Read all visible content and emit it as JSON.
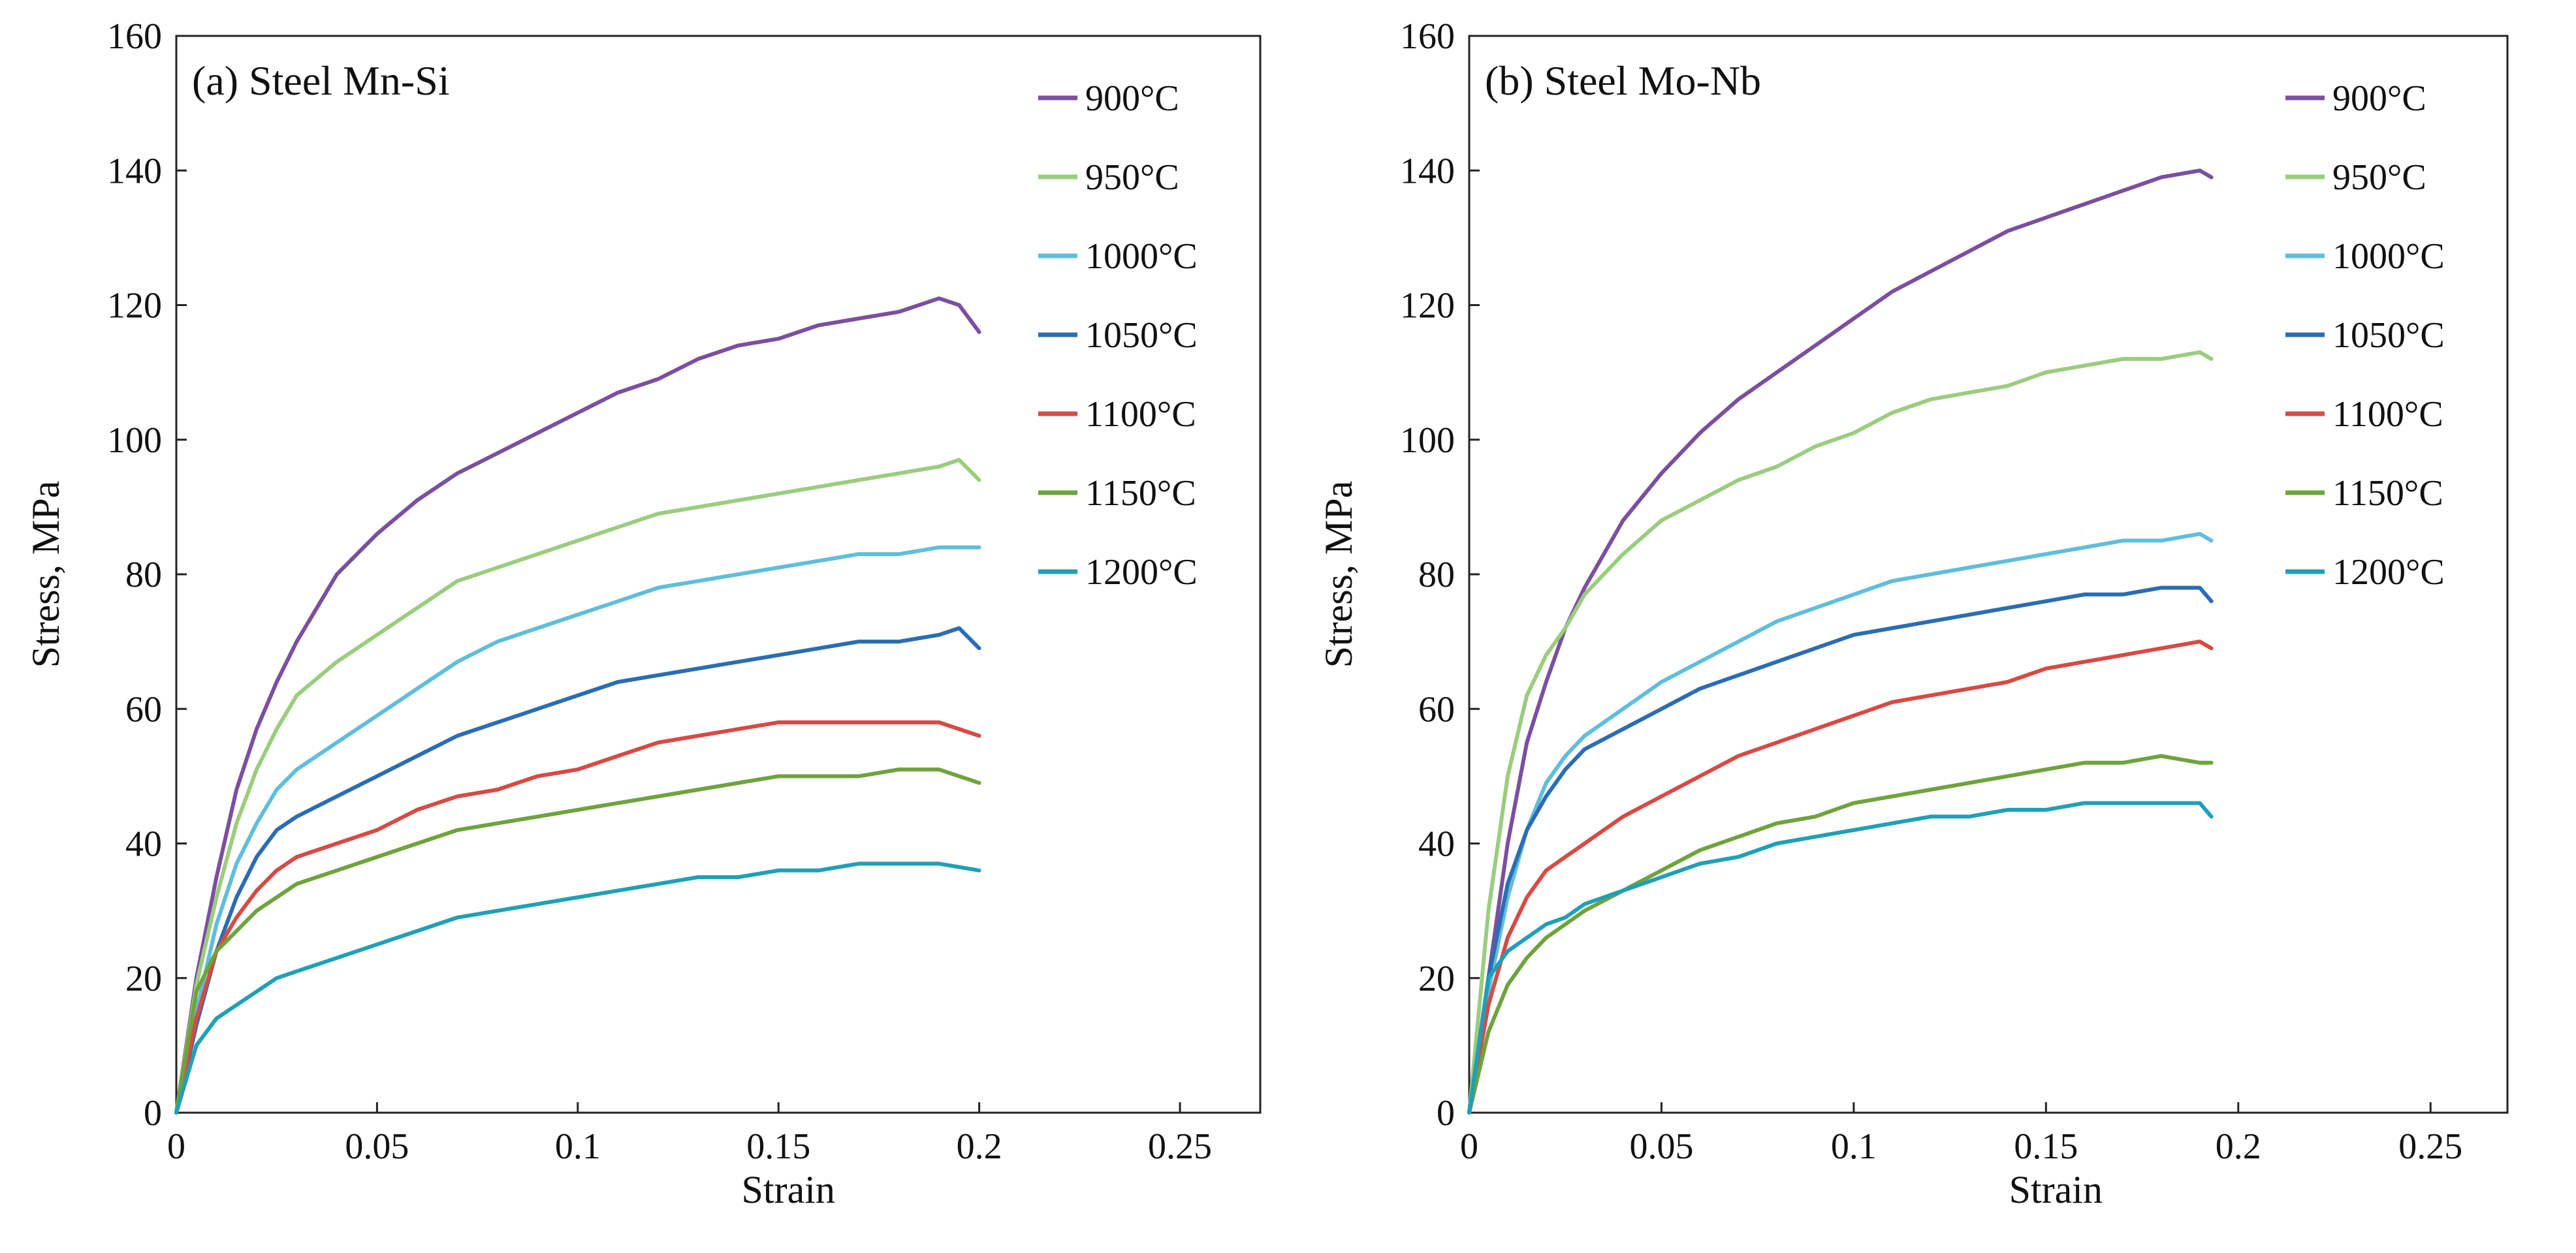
{
  "chart_data": [
    {
      "type": "line",
      "title": "(a) Steel Mn-Si",
      "xlabel": "Strain",
      "ylabel": "Stress, MPa",
      "xlim": [
        0,
        0.27
      ],
      "ylim": [
        0,
        160
      ],
      "xticks": [
        0,
        0.05,
        0.1,
        0.15,
        0.2,
        0.25
      ],
      "xtick_labels": [
        "0",
        "0.05",
        "0.1",
        "0.15",
        "0.2",
        "0.25"
      ],
      "yticks": [
        0,
        20,
        40,
        60,
        80,
        100,
        120,
        140,
        160
      ],
      "ytick_labels": [
        "0",
        "20",
        "40",
        "60",
        "80",
        "100",
        "120",
        "140",
        "160"
      ],
      "grid": false,
      "legend_position": "top-right",
      "series": [
        {
          "name": "900°C",
          "color": "#7B4FA0",
          "x": [
            0,
            0.005,
            0.01,
            0.015,
            0.02,
            0.025,
            0.03,
            0.035,
            0.04,
            0.05,
            0.06,
            0.07,
            0.08,
            0.09,
            0.1,
            0.11,
            0.12,
            0.13,
            0.14,
            0.15,
            0.16,
            0.17,
            0.18,
            0.19,
            0.195,
            0.2
          ],
          "y": [
            0,
            20,
            35,
            48,
            57,
            64,
            70,
            75,
            80,
            86,
            91,
            95,
            98,
            101,
            104,
            107,
            109,
            112,
            114,
            115,
            117,
            118,
            119,
            121,
            120,
            116
          ]
        },
        {
          "name": "950°C",
          "color": "#9ACD7E",
          "x": [
            0,
            0.005,
            0.01,
            0.015,
            0.02,
            0.025,
            0.03,
            0.04,
            0.05,
            0.06,
            0.07,
            0.08,
            0.09,
            0.1,
            0.11,
            0.12,
            0.13,
            0.14,
            0.15,
            0.16,
            0.17,
            0.18,
            0.19,
            0.195,
            0.2
          ],
          "y": [
            0,
            19,
            32,
            43,
            51,
            57,
            62,
            67,
            71,
            75,
            79,
            81,
            83,
            85,
            87,
            89,
            90,
            91,
            92,
            93,
            94,
            95,
            96,
            97,
            94
          ]
        },
        {
          "name": "1000°C",
          "color": "#5FBEDC",
          "x": [
            0,
            0.005,
            0.01,
            0.015,
            0.02,
            0.025,
            0.03,
            0.04,
            0.05,
            0.06,
            0.07,
            0.08,
            0.09,
            0.1,
            0.11,
            0.12,
            0.13,
            0.14,
            0.15,
            0.16,
            0.17,
            0.18,
            0.19,
            0.2
          ],
          "y": [
            0,
            15,
            28,
            37,
            43,
            48,
            51,
            55,
            59,
            63,
            67,
            70,
            72,
            74,
            76,
            78,
            79,
            80,
            81,
            82,
            83,
            83,
            84,
            84
          ]
        },
        {
          "name": "1050°C",
          "color": "#2B6DB4",
          "x": [
            0,
            0.005,
            0.01,
            0.015,
            0.02,
            0.025,
            0.03,
            0.04,
            0.05,
            0.06,
            0.07,
            0.08,
            0.09,
            0.1,
            0.11,
            0.12,
            0.13,
            0.14,
            0.15,
            0.16,
            0.17,
            0.18,
            0.19,
            0.195,
            0.2
          ],
          "y": [
            0,
            13,
            24,
            32,
            38,
            42,
            44,
            47,
            50,
            53,
            56,
            58,
            60,
            62,
            64,
            65,
            66,
            67,
            68,
            69,
            70,
            70,
            71,
            72,
            69
          ]
        },
        {
          "name": "1100°C",
          "color": "#D84A43",
          "x": [
            0,
            0.005,
            0.01,
            0.015,
            0.02,
            0.025,
            0.03,
            0.04,
            0.05,
            0.06,
            0.07,
            0.08,
            0.09,
            0.1,
            0.11,
            0.12,
            0.13,
            0.14,
            0.15,
            0.16,
            0.17,
            0.18,
            0.19,
            0.2
          ],
          "y": [
            0,
            14,
            24,
            29,
            33,
            36,
            38,
            40,
            42,
            45,
            47,
            48,
            50,
            51,
            53,
            55,
            56,
            57,
            58,
            58,
            58,
            58,
            58,
            56
          ]
        },
        {
          "name": "1150°C",
          "color": "#6FA33C",
          "x": [
            0,
            0.005,
            0.01,
            0.015,
            0.02,
            0.025,
            0.03,
            0.04,
            0.05,
            0.06,
            0.07,
            0.08,
            0.09,
            0.1,
            0.11,
            0.12,
            0.13,
            0.14,
            0.15,
            0.16,
            0.17,
            0.18,
            0.19,
            0.2
          ],
          "y": [
            0,
            18,
            24,
            27,
            30,
            32,
            34,
            36,
            38,
            40,
            42,
            43,
            44,
            45,
            46,
            47,
            48,
            49,
            50,
            50,
            50,
            51,
            51,
            49
          ]
        },
        {
          "name": "1200°C",
          "color": "#1FA0B8",
          "x": [
            0,
            0.005,
            0.01,
            0.015,
            0.02,
            0.025,
            0.03,
            0.04,
            0.05,
            0.06,
            0.07,
            0.08,
            0.09,
            0.1,
            0.11,
            0.12,
            0.13,
            0.14,
            0.15,
            0.16,
            0.17,
            0.18,
            0.19,
            0.2
          ],
          "y": [
            0,
            10,
            14,
            16,
            18,
            20,
            21,
            23,
            25,
            27,
            29,
            30,
            31,
            32,
            33,
            34,
            35,
            35,
            36,
            36,
            37,
            37,
            37,
            36
          ]
        }
      ]
    },
    {
      "type": "line",
      "title": "(b) Steel Mo-Nb",
      "xlabel": "Strain",
      "ylabel": "Stress, MPa",
      "xlim": [
        0,
        0.27
      ],
      "ylim": [
        0,
        160
      ],
      "xticks": [
        0,
        0.05,
        0.1,
        0.15,
        0.2,
        0.25
      ],
      "xtick_labels": [
        "0",
        "0.05",
        "0.1",
        "0.15",
        "0.2",
        "0.25"
      ],
      "yticks": [
        0,
        20,
        40,
        60,
        80,
        100,
        120,
        140,
        160
      ],
      "ytick_labels": [
        "0",
        "20",
        "40",
        "60",
        "80",
        "100",
        "120",
        "140",
        "160"
      ],
      "grid": false,
      "legend_position": "top-right",
      "series": [
        {
          "name": "900°C",
          "color": "#7B4FA0",
          "x": [
            0,
            0.005,
            0.01,
            0.015,
            0.02,
            0.025,
            0.03,
            0.035,
            0.04,
            0.05,
            0.06,
            0.07,
            0.08,
            0.09,
            0.1,
            0.11,
            0.12,
            0.13,
            0.14,
            0.15,
            0.16,
            0.17,
            0.18,
            0.19,
            0.193
          ],
          "y": [
            0,
            20,
            40,
            55,
            64,
            72,
            78,
            83,
            88,
            95,
            101,
            106,
            110,
            114,
            118,
            122,
            125,
            128,
            131,
            133,
            135,
            137,
            139,
            140,
            139
          ]
        },
        {
          "name": "950°C",
          "color": "#9ACD7E",
          "x": [
            0,
            0.005,
            0.01,
            0.015,
            0.02,
            0.025,
            0.03,
            0.04,
            0.05,
            0.06,
            0.07,
            0.08,
            0.09,
            0.1,
            0.11,
            0.12,
            0.13,
            0.14,
            0.15,
            0.16,
            0.17,
            0.18,
            0.19,
            0.193
          ],
          "y": [
            0,
            30,
            50,
            62,
            68,
            72,
            77,
            83,
            88,
            91,
            94,
            96,
            99,
            101,
            104,
            106,
            107,
            108,
            110,
            111,
            112,
            112,
            113,
            112
          ]
        },
        {
          "name": "1000°C",
          "color": "#5FBEDC",
          "x": [
            0,
            0.005,
            0.01,
            0.015,
            0.02,
            0.025,
            0.03,
            0.04,
            0.05,
            0.06,
            0.07,
            0.08,
            0.09,
            0.1,
            0.11,
            0.12,
            0.13,
            0.14,
            0.15,
            0.16,
            0.17,
            0.18,
            0.19,
            0.193
          ],
          "y": [
            0,
            18,
            32,
            42,
            49,
            53,
            56,
            60,
            64,
            67,
            70,
            73,
            75,
            77,
            79,
            80,
            81,
            82,
            83,
            84,
            85,
            85,
            86,
            85
          ]
        },
        {
          "name": "1050°C",
          "color": "#2B6DB4",
          "x": [
            0,
            0.005,
            0.01,
            0.015,
            0.02,
            0.025,
            0.03,
            0.04,
            0.05,
            0.06,
            0.07,
            0.08,
            0.09,
            0.1,
            0.11,
            0.12,
            0.13,
            0.14,
            0.15,
            0.16,
            0.17,
            0.18,
            0.19,
            0.193
          ],
          "y": [
            0,
            20,
            34,
            42,
            47,
            51,
            54,
            57,
            60,
            63,
            65,
            67,
            69,
            71,
            72,
            73,
            74,
            75,
            76,
            77,
            77,
            78,
            78,
            76
          ]
        },
        {
          "name": "1100°C",
          "color": "#D84A43",
          "x": [
            0,
            0.005,
            0.01,
            0.015,
            0.02,
            0.025,
            0.03,
            0.04,
            0.05,
            0.06,
            0.07,
            0.08,
            0.09,
            0.1,
            0.11,
            0.12,
            0.13,
            0.14,
            0.15,
            0.16,
            0.17,
            0.18,
            0.19,
            0.193
          ],
          "y": [
            0,
            16,
            26,
            32,
            36,
            38,
            40,
            44,
            47,
            50,
            53,
            55,
            57,
            59,
            61,
            62,
            63,
            64,
            66,
            67,
            68,
            69,
            70,
            69
          ]
        },
        {
          "name": "1150°C",
          "color": "#6FA33C",
          "x": [
            0,
            0.005,
            0.01,
            0.015,
            0.02,
            0.025,
            0.03,
            0.04,
            0.05,
            0.06,
            0.07,
            0.08,
            0.09,
            0.1,
            0.11,
            0.12,
            0.13,
            0.14,
            0.15,
            0.16,
            0.17,
            0.18,
            0.19,
            0.193
          ],
          "y": [
            0,
            12,
            19,
            23,
            26,
            28,
            30,
            33,
            36,
            39,
            41,
            43,
            44,
            46,
            47,
            48,
            49,
            50,
            51,
            52,
            52,
            53,
            52,
            52
          ]
        },
        {
          "name": "1200°C",
          "color": "#1FA0B8",
          "x": [
            0,
            0.005,
            0.01,
            0.015,
            0.02,
            0.025,
            0.03,
            0.04,
            0.05,
            0.06,
            0.07,
            0.08,
            0.09,
            0.1,
            0.11,
            0.12,
            0.13,
            0.14,
            0.15,
            0.16,
            0.17,
            0.18,
            0.19,
            0.193
          ],
          "y": [
            0,
            20,
            24,
            26,
            28,
            29,
            31,
            33,
            35,
            37,
            38,
            40,
            41,
            42,
            43,
            44,
            44,
            45,
            45,
            46,
            46,
            46,
            46,
            44
          ]
        }
      ]
    }
  ]
}
